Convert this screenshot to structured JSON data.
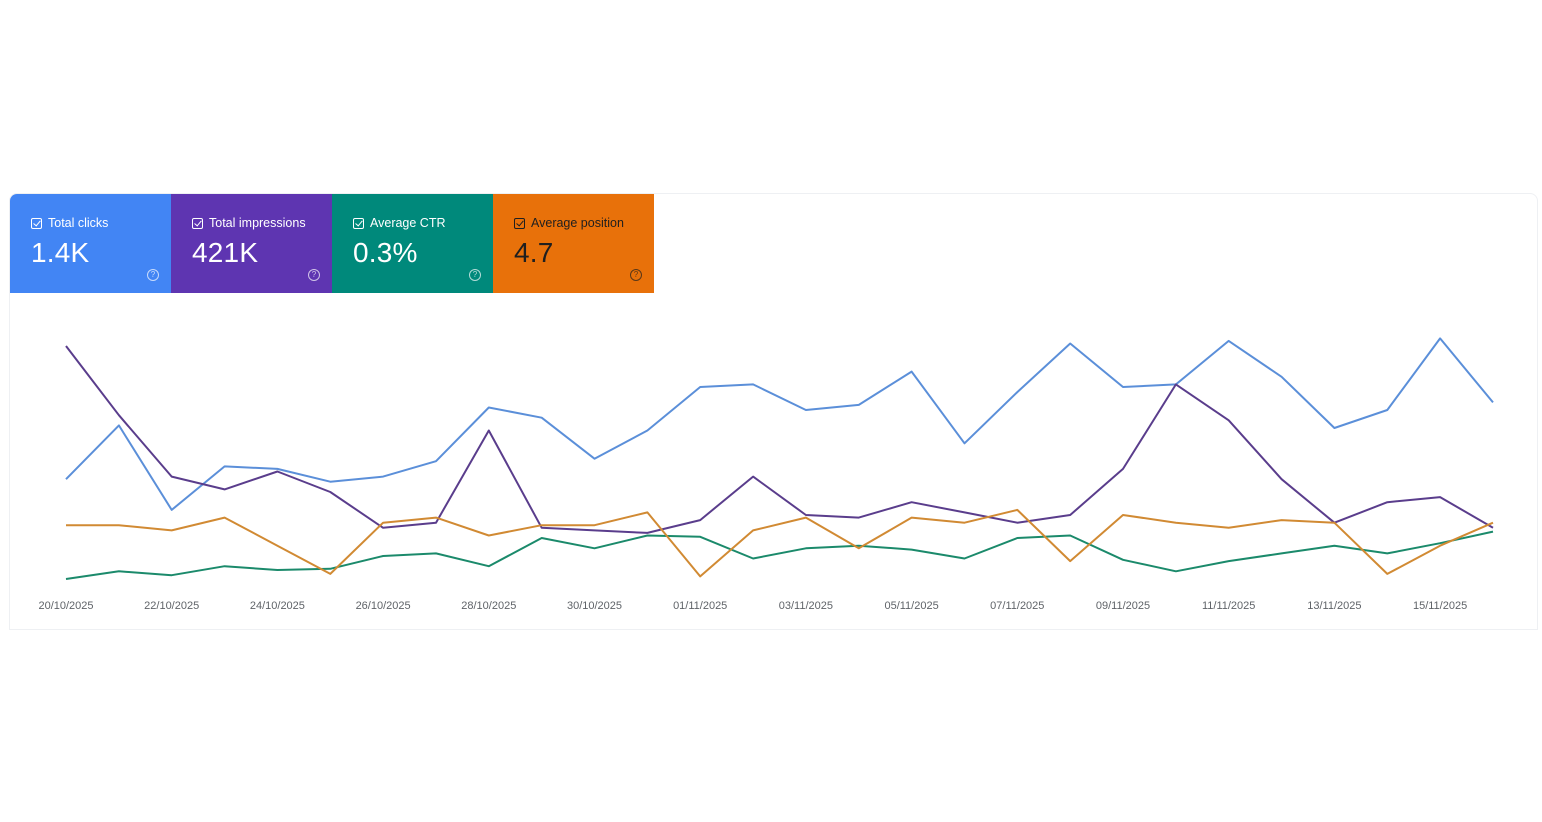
{
  "cards": [
    {
      "label": "Total clicks",
      "value": "1.4K",
      "color": "#4285f4",
      "text_color": "#ffffff",
      "icon": "help-icon"
    },
    {
      "label": "Total impressions",
      "value": "421K",
      "color": "#5e35b1",
      "text_color": "#ffffff",
      "icon": "help-icon"
    },
    {
      "label": "Average CTR",
      "value": "0.3%",
      "color": "#00897b",
      "text_color": "#ffffff",
      "icon": "help-icon"
    },
    {
      "label": "Average position",
      "value": "4.7",
      "color": "#e8710a",
      "text_color": "#1f1f1f",
      "icon": "help-icon"
    }
  ],
  "chart_data": {
    "type": "line",
    "x": [
      "20/10/2025",
      "21/10/2025",
      "22/10/2025",
      "23/10/2025",
      "24/10/2025",
      "25/10/2025",
      "26/10/2025",
      "27/10/2025",
      "28/10/2025",
      "29/10/2025",
      "30/10/2025",
      "31/10/2025",
      "01/11/2025",
      "02/11/2025",
      "03/11/2025",
      "04/11/2025",
      "05/11/2025",
      "06/11/2025",
      "07/11/2025",
      "08/11/2025",
      "09/11/2025",
      "10/11/2025",
      "11/11/2025",
      "12/11/2025",
      "13/11/2025",
      "14/11/2025",
      "15/11/2025",
      "16/11/2025"
    ],
    "x_tick_labels": [
      "20/10/2025",
      "22/10/2025",
      "24/10/2025",
      "26/10/2025",
      "28/10/2025",
      "30/10/2025",
      "01/11/2025",
      "03/11/2025",
      "05/11/2025",
      "07/11/2025",
      "09/11/2025",
      "11/11/2025",
      "13/11/2025",
      "15/11/2025"
    ],
    "grid": false,
    "legend": "none",
    "normalized_scale": [
      0,
      100
    ],
    "series": [
      {
        "key": "clicks",
        "color": "#5b8fd9",
        "values": [
          39,
          60,
          27,
          44,
          43,
          38,
          40,
          46,
          67,
          63,
          47,
          58,
          75,
          76,
          66,
          68,
          81,
          53,
          73,
          92,
          75,
          76,
          93,
          79,
          59,
          66,
          94,
          69
        ]
      },
      {
        "key": "impressions",
        "color": "#5a3d8c",
        "values": [
          91,
          64,
          40,
          35,
          42,
          34,
          20,
          22,
          58,
          20,
          19,
          18,
          23,
          40,
          25,
          24,
          30,
          26,
          22,
          25,
          43,
          76,
          62,
          39,
          22,
          30,
          32,
          20
        ]
      },
      {
        "key": "ctr",
        "color": "#1b8a6b",
        "values": [
          0,
          3,
          1.5,
          5,
          3.5,
          4,
          9,
          10,
          5,
          16,
          12,
          17,
          16.5,
          8,
          12,
          13,
          11.5,
          8,
          16,
          17,
          7.5,
          3,
          7,
          10,
          13,
          10,
          14,
          18.5
        ]
      },
      {
        "key": "position",
        "color": "#d18a33",
        "values": [
          21,
          21,
          19,
          24,
          13,
          2,
          22,
          24,
          17,
          21,
          21,
          26,
          1,
          19,
          24,
          12,
          24,
          22,
          27,
          7,
          25,
          22,
          20,
          23,
          22,
          2,
          13,
          22
        ]
      }
    ]
  }
}
